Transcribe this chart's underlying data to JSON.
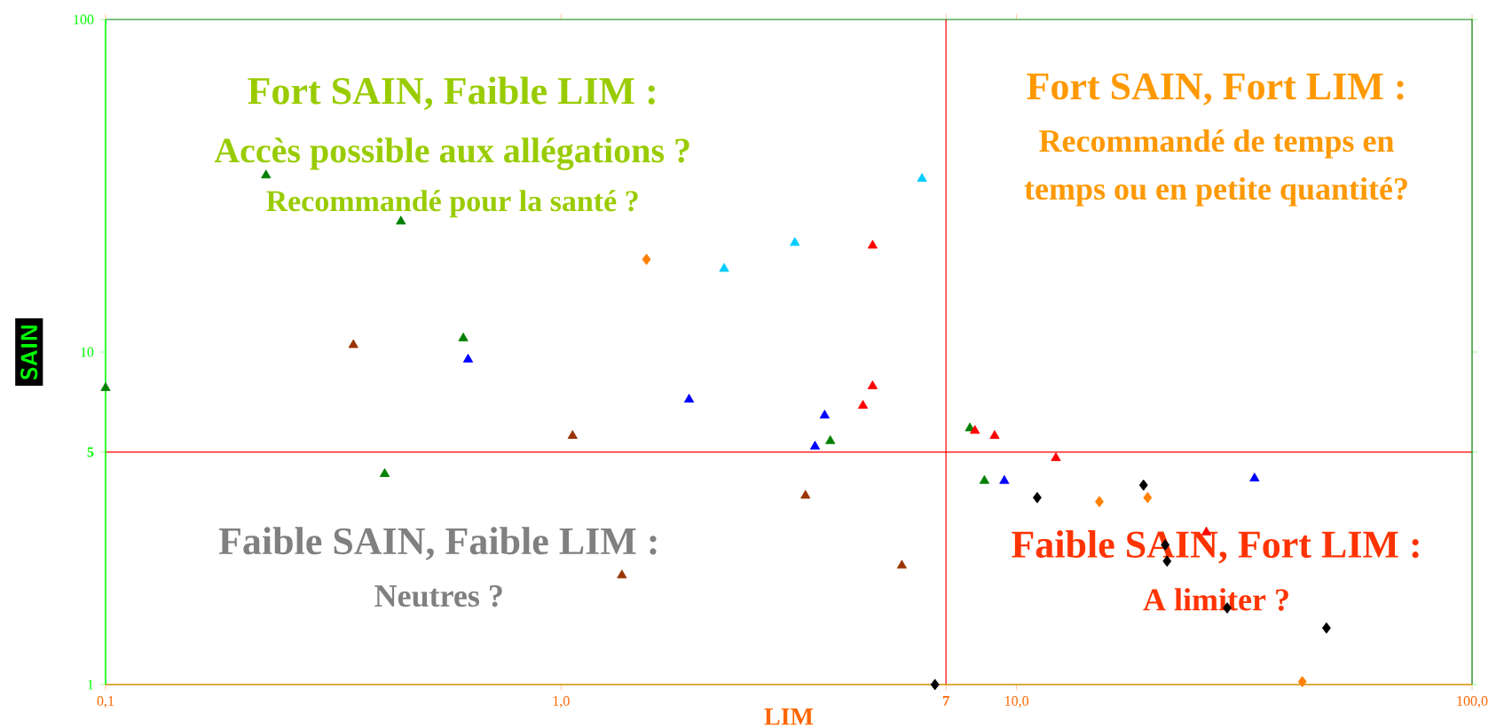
{
  "chart_data": {
    "type": "scatter",
    "xlabel": "LIM",
    "ylabel": "SAIN",
    "log": "xy",
    "grid": false,
    "xlim": [
      0.1,
      100
    ],
    "ylim": [
      1,
      100
    ],
    "xticks": [
      {
        "value": 0.1,
        "label": "0,1"
      },
      {
        "value": 1,
        "label": "1,0"
      },
      {
        "value": 7,
        "label": "7"
      },
      {
        "value": 10,
        "label": "10,0"
      },
      {
        "value": 100,
        "label": "100,0"
      }
    ],
    "yticks": [
      1,
      5,
      10,
      100
    ],
    "ref_lines": [
      {
        "axis": "x",
        "value": 7,
        "color": "#ff0000"
      },
      {
        "axis": "y",
        "value": 5,
        "color": "#ff0000"
      }
    ],
    "annotations": [
      "Fort SAIN, Faible LIM :",
      "Accès possible aux allégations ?",
      "Recommandé pour la santé ?",
      "Fort SAIN, Fort LIM :",
      "Recommandé de temps en",
      "temps ou en petite quantité?",
      "Faible SAIN, Faible LIM :",
      "Neutres ?",
      "Faible SAIN, Fort LIM :",
      "A limiter ?"
    ],
    "series": [
      {
        "color": "#008000",
        "marker": "triangle",
        "x": [
          0.1,
          0.225,
          0.445,
          0.61,
          0.41,
          3.9,
          7.9,
          8.5
        ],
        "values": [
          7.8,
          34,
          24.7,
          11.0,
          4.3,
          5.4,
          5.9,
          4.1
        ]
      },
      {
        "color": "#993300",
        "marker": "triangle",
        "x": [
          0.35,
          1.06,
          1.36,
          3.44,
          5.6
        ],
        "values": [
          10.5,
          5.6,
          2.13,
          3.7,
          2.28
        ]
      },
      {
        "color": "#0000ff",
        "marker": "triangle",
        "x": [
          0.625,
          1.91,
          3.79,
          3.61,
          9.4,
          33.3
        ],
        "values": [
          9.5,
          7.2,
          6.45,
          5.2,
          4.1,
          4.17
        ]
      },
      {
        "color": "#00ccff",
        "marker": "triangle",
        "x": [
          6.2,
          3.26,
          2.28
        ],
        "values": [
          33.2,
          21.3,
          17.8
        ]
      },
      {
        "color": "#ff0000",
        "marker": "triangle",
        "x": [
          4.83,
          4.83,
          4.6,
          8.1,
          8.95,
          12.2,
          26.1
        ],
        "values": [
          20.9,
          7.9,
          6.9,
          5.8,
          5.6,
          4.8,
          2.87
        ]
      },
      {
        "color": "#ff8000",
        "marker": "diamond",
        "x": [
          1.54,
          15.2,
          19.4,
          42.4
        ],
        "values": [
          19.0,
          3.55,
          3.65,
          1.02
        ]
      },
      {
        "color": "#000000",
        "marker": "diamond",
        "x": [
          6.62,
          11.1,
          19.0,
          21.2,
          21.4,
          29.0,
          47.9
        ],
        "values": [
          1.0,
          3.65,
          3.98,
          2.63,
          2.35,
          1.7,
          1.48
        ]
      }
    ]
  }
}
